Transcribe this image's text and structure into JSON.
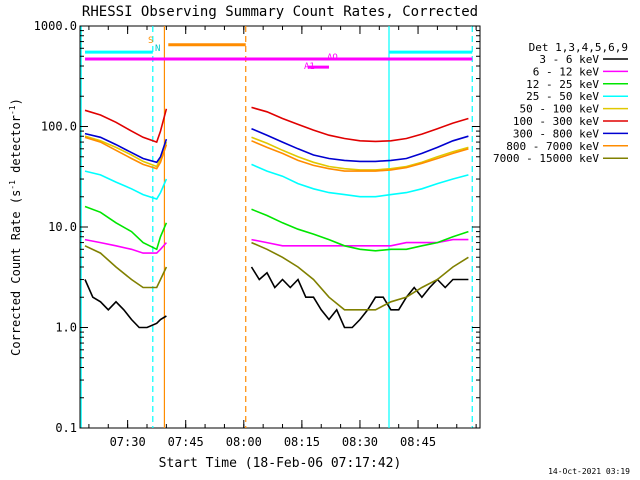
{
  "title": "RHESSI Observing Summary Count Rates, Corrected",
  "ylabel": "Corrected Count Rate (s",
  "ylabel_sup": "-1",
  "ylabel_mid": " detector",
  "ylabel_sup2": "-1",
  "ylabel_end": ")",
  "xlabel": "Start Time (18-Feb-06 07:17:42)",
  "footer_date": "14-Oct-2021 03:19",
  "legend_title": "Det 1,3,4,5,6,9",
  "flags": {
    "s_label": "S",
    "n_label": "N",
    "ao_label": "AO",
    "a1_label": "A1"
  },
  "colors": {
    "cyan": "#00ffff",
    "orange": "#ff8c00",
    "magenta": "#ff00ff"
  },
  "chart_data": {
    "type": "line",
    "title": "RHESSI Observing Summary Count Rates, Corrected",
    "xlabel": "Start Time (18-Feb-06 07:17:42)",
    "ylabel": "Corrected Count Rate (s^-1 detector^-1)",
    "yscale": "log",
    "ylim": [
      0.1,
      1000.0
    ],
    "y_ticks": [
      "0.1",
      "1.0",
      "10.0",
      "100.0",
      "1000.0"
    ],
    "x_ticks": [
      "07:30",
      "07:45",
      "08:00",
      "08:15",
      "08:30",
      "08:45"
    ],
    "x_tick_minutes": [
      450,
      465,
      480,
      495,
      510,
      525
    ],
    "xlim_minutes": [
      437.7,
      541
    ],
    "series": [
      {
        "name": "3 - 6 keV",
        "color": "#000000",
        "x": [
          439,
          441,
          443,
          445,
          447,
          449,
          451,
          453,
          455,
          457.5,
          458.5,
          460,
          466,
          470,
          474,
          478,
          482,
          484,
          486,
          488,
          490,
          492,
          494,
          496,
          498,
          500,
          502,
          504,
          506,
          508,
          510,
          512,
          514,
          516,
          518,
          520,
          522,
          524,
          526,
          528,
          530,
          532,
          534,
          536,
          538
        ],
        "y": [
          3,
          2,
          1.8,
          1.5,
          1.8,
          1.5,
          1.2,
          1,
          1,
          1.1,
          1.2,
          1.3,
          null,
          null,
          null,
          null,
          4,
          3,
          3.5,
          2.5,
          3,
          2.5,
          3,
          2,
          2,
          1.5,
          1.2,
          1.5,
          1,
          1,
          1.2,
          1.5,
          2,
          2,
          1.5,
          1.5,
          2,
          2.5,
          2,
          2.5,
          3,
          2.5,
          3,
          3,
          3
        ]
      },
      {
        "name": "6 - 12 keV",
        "color": "#ff00ff",
        "x": [
          439,
          443,
          447,
          451,
          454,
          457.5,
          458.5,
          460,
          466,
          470,
          474,
          478,
          482,
          486,
          490,
          494,
          498,
          502,
          506,
          510,
          514,
          518,
          522,
          526,
          530,
          534,
          538
        ],
        "y": [
          7.5,
          7,
          6.5,
          6,
          5.5,
          5.5,
          6,
          7,
          null,
          null,
          null,
          null,
          7.5,
          7,
          6.5,
          6.5,
          6.5,
          6.5,
          6.5,
          6.5,
          6.5,
          6.5,
          7,
          7,
          7,
          7.5,
          7.5
        ]
      },
      {
        "name": "12 - 25 keV",
        "color": "#00e600",
        "x": [
          439,
          443,
          447,
          451,
          454,
          457.5,
          458.5,
          460,
          466,
          470,
          474,
          478,
          482,
          486,
          490,
          494,
          498,
          502,
          506,
          510,
          514,
          518,
          522,
          526,
          530,
          534,
          538
        ],
        "y": [
          16,
          14,
          11,
          9,
          7,
          6,
          8,
          11,
          null,
          null,
          null,
          null,
          15,
          13,
          11,
          9.5,
          8.5,
          7.5,
          6.5,
          6,
          5.8,
          6,
          6,
          6.5,
          7,
          8,
          9
        ]
      },
      {
        "name": "25 - 50 keV",
        "color": "#00ffff",
        "x": [
          439,
          443,
          447,
          451,
          454,
          457.5,
          458.5,
          460,
          466,
          470,
          474,
          478,
          482,
          486,
          490,
          494,
          498,
          502,
          506,
          510,
          514,
          518,
          522,
          526,
          530,
          534,
          538
        ],
        "y": [
          36,
          33,
          28,
          24,
          21,
          19,
          22,
          30,
          null,
          null,
          null,
          null,
          42,
          36,
          32,
          27,
          24,
          22,
          21,
          20,
          20,
          21,
          22,
          24,
          27,
          30,
          33
        ]
      },
      {
        "name": "50 - 100 keV",
        "color": "#e0c800",
        "x": [
          439,
          443,
          447,
          451,
          454,
          457.5,
          458.5,
          460,
          466,
          470,
          474,
          478,
          482,
          486,
          490,
          494,
          498,
          502,
          506,
          510,
          514,
          518,
          522,
          526,
          530,
          534,
          538
        ],
        "y": [
          80,
          72,
          62,
          52,
          45,
          40,
          48,
          70,
          null,
          null,
          null,
          null,
          78,
          68,
          58,
          50,
          44,
          40,
          38,
          37,
          37,
          38,
          40,
          44,
          50,
          56,
          62
        ]
      },
      {
        "name": "100 - 300 keV",
        "color": "#e00000",
        "x": [
          439,
          443,
          447,
          451,
          454,
          457.5,
          458.5,
          460,
          466,
          470,
          474,
          478,
          482,
          486,
          490,
          494,
          498,
          502,
          506,
          510,
          514,
          518,
          522,
          526,
          530,
          534,
          538
        ],
        "y": [
          145,
          130,
          110,
          90,
          78,
          70,
          90,
          150,
          null,
          null,
          null,
          null,
          155,
          140,
          120,
          105,
          92,
          82,
          76,
          72,
          71,
          72,
          76,
          84,
          95,
          108,
          120
        ]
      },
      {
        "name": "300 - 800 keV",
        "color": "#0000d0",
        "x": [
          439,
          443,
          447,
          451,
          454,
          457.5,
          458.5,
          460,
          466,
          470,
          474,
          478,
          482,
          486,
          490,
          494,
          498,
          502,
          506,
          510,
          514,
          518,
          522,
          526,
          530,
          534,
          538
        ],
        "y": [
          85,
          78,
          66,
          55,
          48,
          44,
          50,
          75,
          null,
          null,
          null,
          null,
          95,
          82,
          70,
          60,
          52,
          48,
          46,
          45,
          45,
          46,
          48,
          54,
          62,
          72,
          80
        ]
      },
      {
        "name": "800 - 7000 keV",
        "color": "#ff8c00",
        "x": [
          439,
          443,
          447,
          451,
          454,
          457.5,
          458.5,
          460,
          466,
          470,
          474,
          478,
          482,
          486,
          490,
          494,
          498,
          502,
          506,
          510,
          514,
          518,
          522,
          526,
          530,
          534,
          538
        ],
        "y": [
          78,
          70,
          58,
          48,
          42,
          38,
          44,
          66,
          null,
          null,
          null,
          null,
          72,
          62,
          54,
          46,
          41,
          38,
          36,
          36,
          36,
          37,
          39,
          43,
          48,
          54,
          60
        ]
      },
      {
        "name": "7000 - 15000 keV",
        "color": "#808000",
        "x": [
          439,
          443,
          447,
          451,
          454,
          457.5,
          458.5,
          460,
          466,
          470,
          474,
          478,
          482,
          486,
          490,
          494,
          498,
          502,
          506,
          510,
          514,
          518,
          522,
          526,
          530,
          534,
          538
        ],
        "y": [
          6.5,
          5.5,
          4,
          3,
          2.5,
          2.5,
          3,
          4,
          null,
          null,
          null,
          null,
          7,
          6,
          5,
          4,
          3,
          2,
          1.5,
          1.5,
          1.5,
          1.8,
          2,
          2.5,
          3,
          4,
          5
        ]
      }
    ],
    "events": [
      {
        "label": "S",
        "color": "#ff8c00",
        "x_start": 460.5,
        "x_end": 480.5,
        "level_y": 650
      },
      {
        "label": "N",
        "color": "#00ffff",
        "x_start": 439,
        "x_end": 456.5,
        "level_y": 550
      },
      {
        "label": "N",
        "color": "#00ffff",
        "x_start": 517.5,
        "x_end": 539,
        "level_y": 550
      },
      {
        "label": "AO",
        "color": "#ff00ff",
        "x_start": 439,
        "x_end": 539,
        "level_y": 470
      },
      {
        "label": "A1",
        "color": "#ff00ff",
        "x_start": 496.5,
        "x_end": 502,
        "level_y": 390
      }
    ],
    "vertical_markers": [
      {
        "x": 438,
        "color": "#00ffff",
        "style": "solid"
      },
      {
        "x": 456.5,
        "color": "#00ffff",
        "style": "dashed"
      },
      {
        "x": 459.5,
        "color": "#ff8c00",
        "style": "solid"
      },
      {
        "x": 480.5,
        "color": "#ff8c00",
        "style": "dashed"
      },
      {
        "x": 517.5,
        "color": "#00ffff",
        "style": "solid"
      },
      {
        "x": 539,
        "color": "#00ffff",
        "style": "dashed"
      }
    ]
  }
}
